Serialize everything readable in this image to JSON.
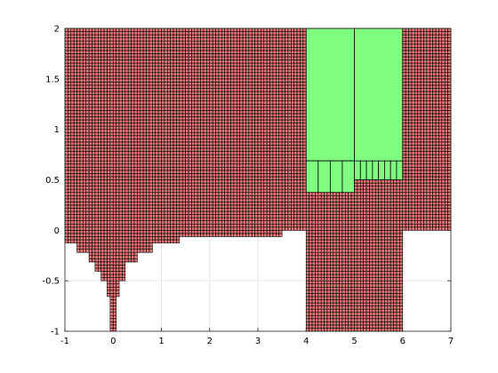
{
  "chart_data": {
    "type": "heatmap",
    "title": "",
    "xlabel": "",
    "ylabel": "",
    "xlim": [
      -1,
      7
    ],
    "ylim": [
      -1,
      2
    ],
    "grid": true,
    "xticks": [
      -1,
      0,
      1,
      2,
      3,
      4,
      5,
      6,
      7
    ],
    "yticks": [
      -1,
      -0.5,
      0,
      0.5,
      1,
      1.5,
      2
    ],
    "xtick_labels": [
      "-1",
      "0",
      "1",
      "2",
      "3",
      "4",
      "5",
      "6",
      "7"
    ],
    "ytick_labels": [
      "-1",
      "-0.5",
      "0",
      "0.5",
      "1",
      "1.5",
      "2"
    ],
    "colors": {
      "red_cells": "#e67878",
      "green_cells": "#80fc80",
      "cell_edge": "#000000",
      "grid": "#e6e6e6",
      "axes": "#262626"
    },
    "red_region": {
      "color": "red",
      "cell_width": 0.0625,
      "row_height": 0.03125,
      "top": 2.0,
      "bottom_profile": [
        {
          "x0": -1.0,
          "x1": -0.75,
          "y_bottom": -0.125
        },
        {
          "x0": -0.75,
          "x1": -0.5,
          "y_bottom": -0.219
        },
        {
          "x0": -0.5,
          "x1": -0.375,
          "y_bottom": -0.313
        },
        {
          "x0": -0.375,
          "x1": -0.25,
          "y_bottom": -0.406
        },
        {
          "x0": -0.25,
          "x1": -0.125,
          "y_bottom": -0.5
        },
        {
          "x0": -0.125,
          "x1": -0.0625,
          "y_bottom": -0.656
        },
        {
          "x0": -0.0625,
          "x1": 0.0625,
          "y_bottom": -1.0
        },
        {
          "x0": 0.0625,
          "x1": 0.125,
          "y_bottom": -0.656
        },
        {
          "x0": 0.125,
          "x1": 0.25,
          "y_bottom": -0.5
        },
        {
          "x0": 0.25,
          "x1": 0.5,
          "y_bottom": -0.313
        },
        {
          "x0": 0.5,
          "x1": 0.8125,
          "y_bottom": -0.219
        },
        {
          "x0": 0.8125,
          "x1": 1.375,
          "y_bottom": -0.125
        },
        {
          "x0": 1.375,
          "x1": 3.5,
          "y_bottom": -0.0625
        },
        {
          "x0": 3.5,
          "x1": 4.0,
          "y_bottom": 0.0
        },
        {
          "x0": 4.0,
          "x1": 6.0,
          "y_bottom": -1.0
        },
        {
          "x0": 6.0,
          "x1": 7.0,
          "y_bottom": 0.0
        }
      ],
      "row_shift": [
        {
          "x0": -1.0,
          "x1": 6.0,
          "offset": 0.0
        },
        {
          "x0": 6.0,
          "x1": 7.0,
          "offset": 0.125
        }
      ]
    },
    "green_cells": [
      {
        "x0": 4.0,
        "x1": 5.0,
        "y0": 0.688,
        "y1": 2.0
      },
      {
        "x0": 5.0,
        "x1": 6.0,
        "y0": 0.5,
        "y1": 2.0
      },
      {
        "x0": 4.0,
        "x1": 4.25,
        "y0": 0.375,
        "y1": 0.688
      },
      {
        "x0": 4.25,
        "x1": 4.5,
        "y0": 0.375,
        "y1": 0.688
      },
      {
        "x0": 4.5,
        "x1": 4.75,
        "y0": 0.375,
        "y1": 0.688
      },
      {
        "x0": 4.75,
        "x1": 5.0,
        "y0": 0.375,
        "y1": 0.688
      },
      {
        "x0": 5.0,
        "x1": 5.125,
        "y0": 0.5,
        "y1": 0.688
      },
      {
        "x0": 5.125,
        "x1": 5.25,
        "y0": 0.5,
        "y1": 0.688
      },
      {
        "x0": 5.25,
        "x1": 5.375,
        "y0": 0.5,
        "y1": 0.688
      },
      {
        "x0": 5.375,
        "x1": 5.5,
        "y0": 0.5,
        "y1": 0.688
      },
      {
        "x0": 5.5,
        "x1": 5.625,
        "y0": 0.5,
        "y1": 0.688
      },
      {
        "x0": 5.625,
        "x1": 5.75,
        "y0": 0.5,
        "y1": 0.688
      },
      {
        "x0": 5.75,
        "x1": 5.875,
        "y0": 0.5,
        "y1": 0.688
      },
      {
        "x0": 5.875,
        "x1": 6.0,
        "y0": 0.5,
        "y1": 0.688
      }
    ]
  }
}
